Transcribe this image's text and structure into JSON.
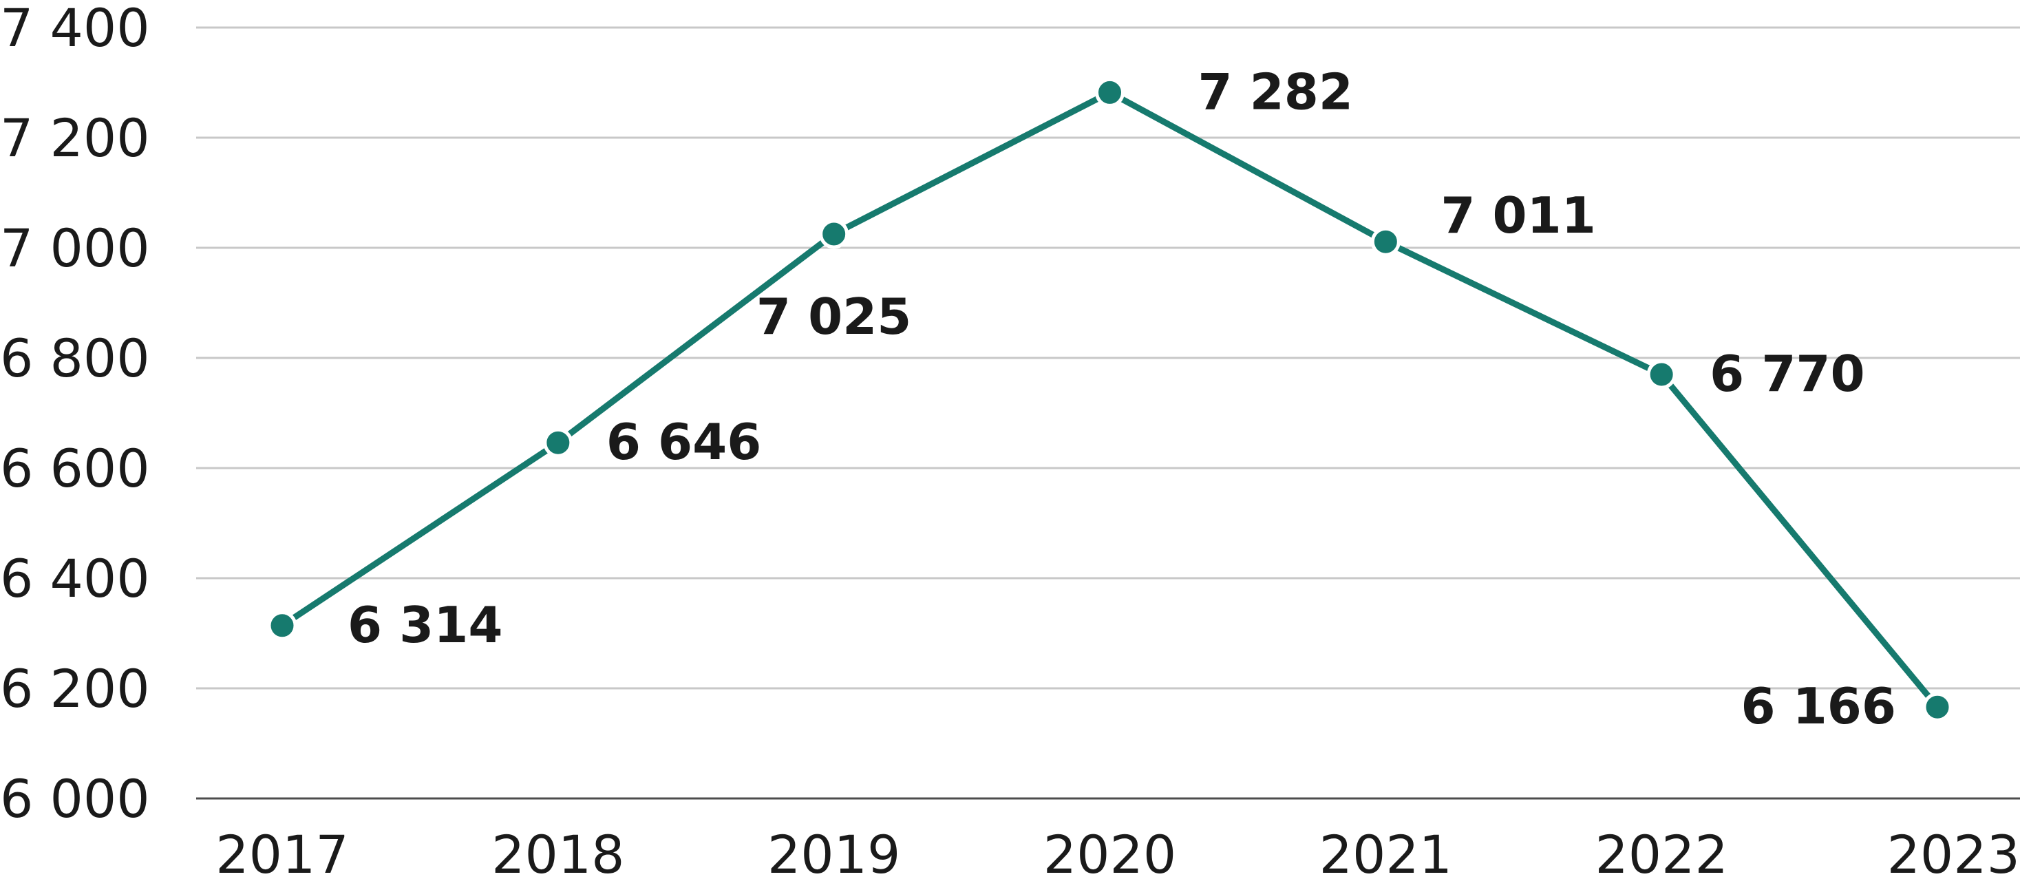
{
  "chart_data": {
    "type": "line",
    "title": "",
    "xlabel": "",
    "ylabel": "",
    "categories": [
      "2017",
      "2018",
      "2019",
      "2020",
      "2021",
      "2022",
      "2023"
    ],
    "series": [
      {
        "values": [
          6314,
          6646,
          7025,
          7282,
          7011,
          6770,
          6166
        ],
        "labels": [
          "6 314",
          "6 646",
          "7 025",
          "7 282",
          "7 011",
          "6 770",
          "6 166"
        ],
        "color": "#167a6e"
      }
    ],
    "ylim": [
      6000,
      7400
    ],
    "yticks": [
      6000,
      6200,
      6400,
      6600,
      6800,
      7000,
      7200,
      7400
    ],
    "ytick_labels": [
      "6 000",
      "6 200",
      "6 400",
      "6 600",
      "6 800",
      "7 000",
      "7 200",
      "7 400"
    ],
    "grid": true,
    "legend": "none",
    "gridline_color": "#c8c8c8",
    "axis_color": "#4d4d4d"
  }
}
